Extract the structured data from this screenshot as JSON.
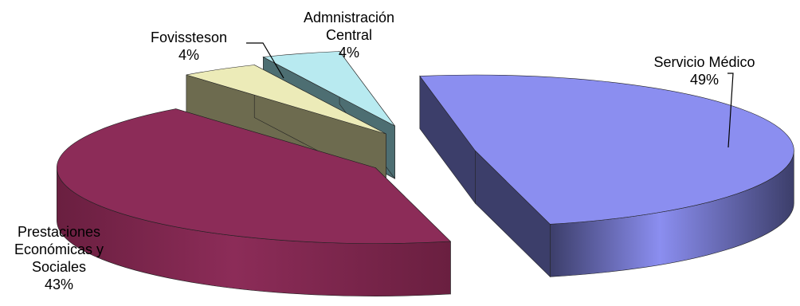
{
  "chart_data": {
    "type": "pie",
    "style": "3d-exploded",
    "title": "",
    "slices": [
      {
        "label_lines": [
          "Servicio Médico"
        ],
        "value": 49,
        "value_label": "49%",
        "color": "#8b8ef0",
        "side_color": "#3c3e6a"
      },
      {
        "label_lines": [
          "Prestaciones",
          "Económicas y",
          "Sociales"
        ],
        "value": 43,
        "value_label": "43%",
        "color": "#8c2c58",
        "side_color": "#6a1f40"
      },
      {
        "label_lines": [
          "Fovissteson"
        ],
        "value": 4,
        "value_label": "4%",
        "color": "#ecebb8",
        "side_color": "#6d6b4f"
      },
      {
        "label_lines": [
          "Admnistración",
          "Central"
        ],
        "value": 4,
        "value_label": "4%",
        "color": "#b8eaf0",
        "side_color": "#4d6e72"
      }
    ],
    "legend": "none",
    "data_labels": "outside with leader lines"
  }
}
